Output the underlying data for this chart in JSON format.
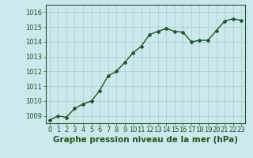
{
  "x": [
    0,
    1,
    2,
    3,
    4,
    5,
    6,
    7,
    8,
    9,
    10,
    11,
    12,
    13,
    14,
    15,
    16,
    17,
    18,
    19,
    20,
    21,
    22,
    23
  ],
  "y": [
    1008.7,
    1009.0,
    1008.9,
    1009.5,
    1009.8,
    1010.0,
    1010.7,
    1011.7,
    1012.0,
    1012.6,
    1013.25,
    1013.7,
    1014.5,
    1014.7,
    1014.9,
    1014.7,
    1014.65,
    1014.0,
    1014.1,
    1014.1,
    1014.75,
    1015.4,
    1015.55,
    1015.45
  ],
  "ylim": [
    1008.5,
    1016.5
  ],
  "yticks": [
    1009,
    1010,
    1011,
    1012,
    1013,
    1014,
    1015,
    1016
  ],
  "xticks": [
    0,
    1,
    2,
    3,
    4,
    5,
    6,
    7,
    8,
    9,
    10,
    11,
    12,
    13,
    14,
    15,
    16,
    17,
    18,
    19,
    20,
    21,
    22,
    23
  ],
  "line_color": "#1a5c1a",
  "marker": "D",
  "marker_size": 2.0,
  "bg_color": "#cce8ee",
  "grid_color": "#aacccc",
  "xlabel": "Graphe pression niveau de la mer (hPa)",
  "xlabel_fontsize": 7.5,
  "tick_fontsize": 6,
  "line_width": 1.0
}
